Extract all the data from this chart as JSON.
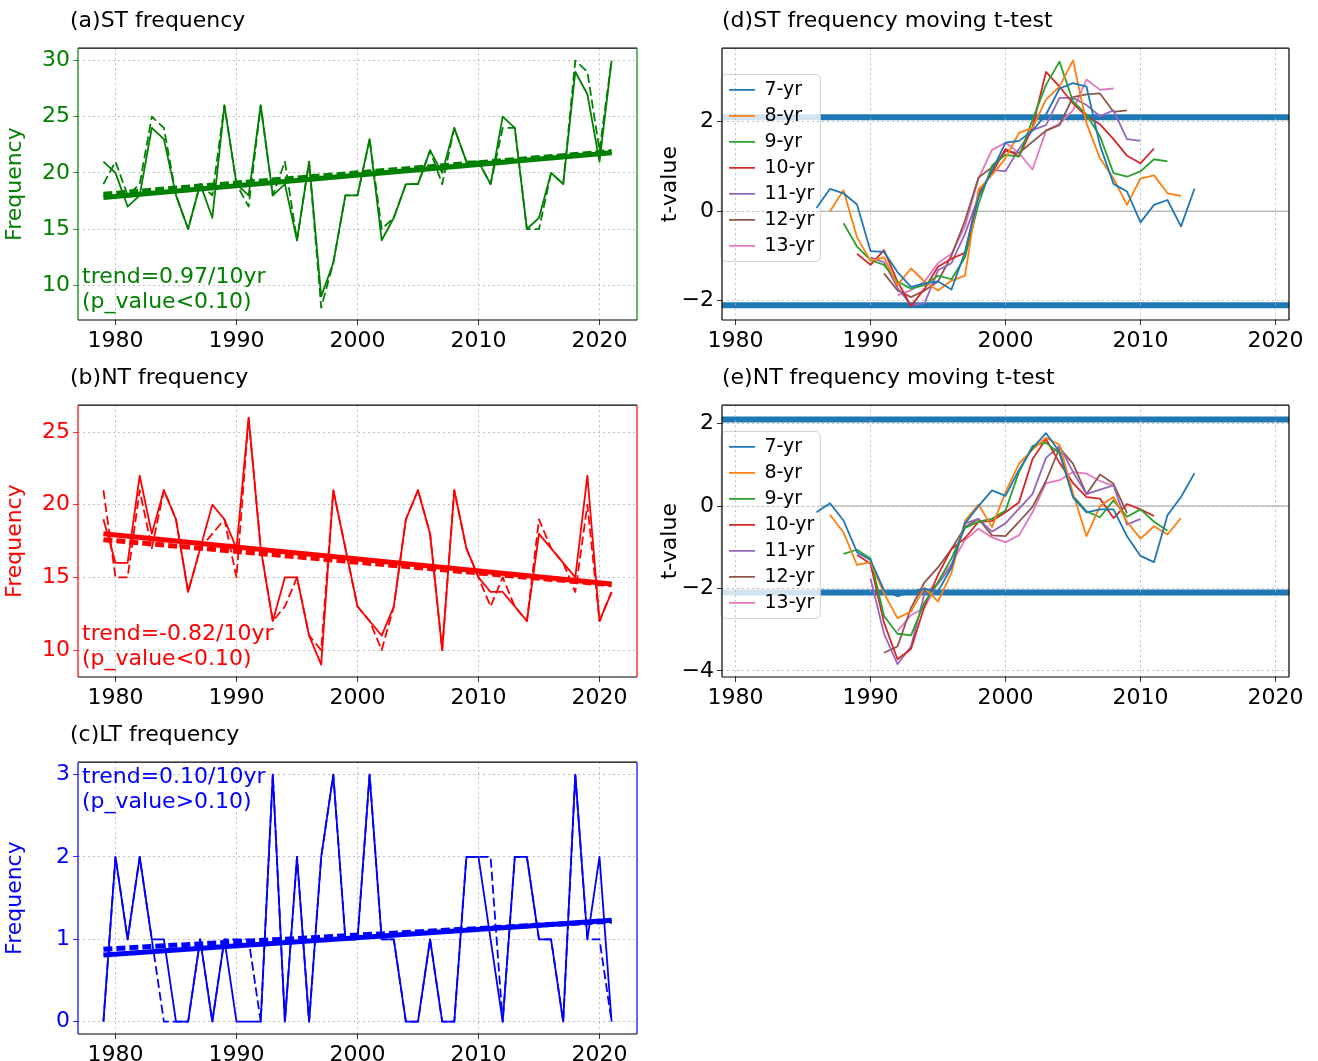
{
  "chart_data": [
    {
      "type": "line",
      "title": "(a)ST frequency",
      "ylabel": "Frequency",
      "x": [
        1979,
        1980,
        1981,
        1982,
        1983,
        1984,
        1985,
        1986,
        1987,
        1988,
        1989,
        1990,
        1991,
        1992,
        1993,
        1994,
        1995,
        1996,
        1997,
        1998,
        1999,
        2000,
        2001,
        2002,
        2003,
        2004,
        2005,
        2006,
        2007,
        2008,
        2009,
        2010,
        2011,
        2012,
        2013,
        2014,
        2015,
        2016,
        2017,
        2018,
        2019,
        2020,
        2021
      ],
      "series": [
        {
          "color": "#008000",
          "values": [
            21,
            20,
            17,
            18,
            24,
            23,
            18,
            15,
            19,
            16,
            26,
            19,
            18,
            26,
            18,
            19,
            14,
            21,
            9,
            12,
            18,
            18,
            23,
            14,
            16,
            19,
            19,
            22,
            20,
            24,
            21,
            21,
            19,
            25,
            24,
            15,
            16,
            20,
            19,
            29,
            27,
            21,
            30
          ]
        },
        {
          "color": "#008000",
          "line_style": "dashed",
          "values": [
            19,
            21,
            18,
            19,
            25,
            24,
            18,
            15,
            19,
            18,
            26,
            19,
            17,
            26,
            18,
            21,
            14,
            21,
            8,
            12,
            18,
            18,
            23,
            15,
            16,
            19,
            19,
            22,
            19,
            24,
            21,
            21,
            19,
            24,
            24,
            15,
            15,
            20,
            19,
            30,
            29,
            22,
            30
          ]
        },
        {
          "color": "#008000",
          "x": [
            1979,
            2021
          ],
          "values": [
            17.8,
            21.8
          ]
        },
        {
          "color": "#008000",
          "line_style": "dashed",
          "x": [
            1979,
            2021
          ],
          "values": [
            18.1,
            21.9
          ]
        }
      ],
      "xlim": [
        1976.9,
        2023.1
      ],
      "ylim": [
        6.9,
        31.1
      ],
      "xticks": [
        1980,
        1990,
        2000,
        2010,
        2020
      ],
      "yticks": [
        10,
        15,
        20,
        25,
        30
      ],
      "grid": true,
      "annotations": [
        "trend=0.97/10yr",
        "(p_value<0.10)"
      ]
    },
    {
      "type": "line",
      "title": "(b)NT frequency",
      "ylabel": "Frequency",
      "x": [
        1979,
        1980,
        1981,
        1982,
        1983,
        1984,
        1985,
        1986,
        1987,
        1988,
        1989,
        1990,
        1991,
        1992,
        1993,
        1994,
        1995,
        1996,
        1997,
        1998,
        1999,
        2000,
        2001,
        2002,
        2003,
        2004,
        2005,
        2006,
        2007,
        2008,
        2009,
        2010,
        2011,
        2012,
        2013,
        2014,
        2015,
        2016,
        2017,
        2018,
        2019,
        2020,
        2021
      ],
      "series": [
        {
          "color": "#ff0000",
          "values": [
            19,
            16,
            16,
            22,
            18,
            21,
            19,
            14,
            17,
            20,
            19,
            17,
            26,
            17,
            12,
            15,
            15,
            11,
            9,
            21,
            17,
            13,
            12,
            11,
            13,
            19,
            21,
            18,
            10,
            21,
            17,
            15,
            14,
            14,
            13,
            12,
            18,
            17,
            16,
            15,
            22,
            12,
            14
          ]
        },
        {
          "color": "#ff0000",
          "line_style": "dashed",
          "values": [
            21,
            15,
            15,
            21,
            17,
            21,
            19,
            14,
            17,
            18,
            19,
            15,
            26,
            17,
            12,
            13,
            15,
            11,
            10,
            21,
            17,
            13,
            12,
            10,
            13,
            19,
            21,
            18,
            10,
            21,
            17,
            15,
            13,
            15,
            13,
            12,
            19,
            17,
            16,
            14,
            20,
            12,
            14
          ]
        },
        {
          "color": "#ff0000",
          "x": [
            1979,
            2021
          ],
          "values": [
            18.0,
            14.55
          ]
        },
        {
          "color": "#ff0000",
          "line_style": "dashed",
          "x": [
            1979,
            2021
          ],
          "values": [
            17.6,
            14.5
          ]
        }
      ],
      "xlim": [
        1976.9,
        2023.1
      ],
      "ylim": [
        8.15,
        26.85
      ],
      "xticks": [
        1980,
        1990,
        2000,
        2010,
        2020
      ],
      "yticks": [
        10,
        15,
        20,
        25
      ],
      "grid": true,
      "annotations": [
        "trend=-0.82/10yr",
        "(p_value<0.10)"
      ]
    },
    {
      "type": "line",
      "title": "(c)LT frequency",
      "ylabel": "Frequency",
      "x": [
        1979,
        1980,
        1981,
        1982,
        1983,
        1984,
        1985,
        1986,
        1987,
        1988,
        1989,
        1990,
        1991,
        1992,
        1993,
        1994,
        1995,
        1996,
        1997,
        1998,
        1999,
        2000,
        2001,
        2002,
        2003,
        2004,
        2005,
        2006,
        2007,
        2008,
        2009,
        2010,
        2011,
        2012,
        2013,
        2014,
        2015,
        2016,
        2017,
        2018,
        2019,
        2020,
        2021
      ],
      "series": [
        {
          "color": "#0000ff",
          "values": [
            0,
            2,
            1,
            2,
            1,
            1,
            0,
            0,
            1,
            0,
            1,
            0,
            0,
            0,
            3,
            0,
            2,
            0,
            2,
            3,
            1,
            1,
            3,
            1,
            1,
            0,
            0,
            1,
            0,
            0,
            2,
            2,
            1,
            0,
            2,
            2,
            1,
            1,
            0,
            3,
            1,
            2,
            0
          ]
        },
        {
          "color": "#0000ff",
          "line_style": "dashed",
          "values": [
            0,
            2,
            1,
            2,
            1,
            0,
            0,
            0,
            1,
            0,
            1,
            1,
            1,
            0,
            3,
            0,
            2,
            0,
            2,
            3,
            1,
            1,
            3,
            1,
            1,
            0,
            0,
            1,
            0,
            0,
            2,
            2,
            2,
            0,
            2,
            2,
            1,
            1,
            0,
            3,
            1,
            1,
            0
          ]
        },
        {
          "color": "#0000ff",
          "x": [
            1979,
            2021
          ],
          "values": [
            0.81,
            1.23
          ]
        },
        {
          "color": "#0000ff",
          "line_style": "dashed",
          "x": [
            1979,
            2021
          ],
          "values": [
            0.88,
            1.22
          ]
        }
      ],
      "xlim": [
        1976.9,
        2023.1
      ],
      "ylim": [
        -0.15,
        3.15
      ],
      "xticks": [
        1980,
        1990,
        2000,
        2010,
        2020
      ],
      "yticks": [
        0,
        1,
        2,
        3
      ],
      "grid": true,
      "annotations": [
        "trend=0.10/10yr",
        "(p_value>0.10)"
      ]
    },
    {
      "type": "line",
      "title": "(d)ST frequency moving t-test",
      "ylabel": "t-value",
      "series": [
        {
          "name": "7-yr",
          "color": "#1f77b4",
          "x": [
            1986,
            1987,
            1988,
            1989,
            1990,
            1991,
            1992,
            1993,
            1994,
            1995,
            1996,
            1997,
            1998,
            1999,
            2000,
            2001,
            2002,
            2003,
            2004,
            2005,
            2006,
            2007,
            2008,
            2009,
            2010,
            2011,
            2012,
            2013,
            2014
          ],
          "values": [
            0.07,
            0.5,
            0.4,
            0.15,
            -0.89,
            -0.91,
            -1.36,
            -1.69,
            -1.61,
            -1.57,
            -1.75,
            -0.91,
            0.32,
            0.9,
            1.53,
            1.57,
            1.8,
            2.16,
            2.74,
            2.86,
            2.78,
            1.47,
            0.61,
            0.44,
            -0.25,
            0.14,
            0.25,
            -0.34,
            0.5
          ]
        },
        {
          "name": "8-yr",
          "color": "#ff7f0e",
          "x": [
            1987,
            1988,
            1989,
            1990,
            1991,
            1992,
            1993,
            1994,
            1995,
            1996,
            1997,
            1998,
            1999,
            2000,
            2001,
            2002,
            2003,
            2004,
            2005,
            2006,
            2007,
            2008,
            2009,
            2010,
            2011,
            2012,
            2013
          ],
          "values": [
            0,
            0.47,
            -0.58,
            -1.11,
            -1.03,
            -1.65,
            -1.28,
            -1.57,
            -1.77,
            -1.55,
            -1.44,
            0.48,
            0.81,
            1.18,
            1.75,
            1.86,
            2.49,
            2.78,
            3.37,
            1.96,
            1.18,
            0.73,
            0.14,
            0.73,
            0.8,
            0.4,
            0.34
          ]
        },
        {
          "name": "9-yr",
          "color": "#2ca02c",
          "x": [
            1988,
            1989,
            1990,
            1991,
            1992,
            1993,
            1994,
            1995,
            1996,
            1997,
            1998,
            1999,
            2000,
            2001,
            2002,
            2003,
            2004,
            2005,
            2006,
            2007,
            2008,
            2009,
            2010,
            2011,
            2012
          ],
          "values": [
            -0.27,
            -0.79,
            -1.09,
            -1.2,
            -1.57,
            -1.73,
            -1.65,
            -1.44,
            -1.52,
            -1.03,
            0.16,
            1.02,
            1.26,
            1.22,
            2.04,
            2.82,
            3.34,
            2.45,
            2.16,
            1.67,
            0.85,
            0.77,
            0.89,
            1.16,
            1.11
          ]
        },
        {
          "name": "10-yr",
          "color": "#d62728",
          "x": [
            1989,
            1990,
            1991,
            1992,
            1993,
            1994,
            1995,
            1996,
            1997,
            1998,
            1999,
            2000,
            2001,
            2002,
            2003,
            2004,
            2005,
            2006,
            2007,
            2008,
            2009,
            2010,
            2011
          ],
          "values": [
            -0.95,
            -1.2,
            -0.87,
            -1.57,
            -2.12,
            -1.73,
            -1.24,
            -1.06,
            -0.93,
            0.4,
            0.85,
            1.39,
            1.22,
            1.88,
            3.11,
            2.78,
            2.41,
            2.12,
            1.94,
            1.61,
            1.24,
            1.07,
            1.4
          ]
        },
        {
          "name": "11-yr",
          "color": "#9467bd",
          "x": [
            1990,
            1991,
            1992,
            1993,
            1994,
            1995,
            1996,
            1997,
            1998,
            1999,
            2000,
            2001,
            2002,
            2003,
            2004,
            2005,
            2006,
            2007,
            2008,
            2009,
            2010
          ],
          "values": [
            -1.03,
            -1.14,
            -1.71,
            -2.1,
            -2.06,
            -1.32,
            -1.16,
            -0.5,
            0.32,
            0.93,
            0.89,
            1.39,
            1.81,
            1.92,
            2.53,
            2.53,
            2.37,
            2.12,
            2.25,
            1.61,
            1.57
          ]
        },
        {
          "name": "12-yr",
          "color": "#8c564b",
          "x": [
            1991,
            1992,
            1993,
            1994,
            1995,
            1996,
            1997,
            1998,
            1999,
            2000,
            2001,
            2002,
            2003,
            2004,
            2005,
            2006,
            2007,
            2008,
            2009
          ],
          "values": [
            -1.39,
            -1.77,
            -1.92,
            -1.77,
            -1.57,
            -0.99,
            -0.21,
            0.75,
            0.98,
            1.34,
            1.3,
            1.55,
            1.8,
            1.92,
            2.55,
            2.61,
            2.63,
            2.22,
            2.25
          ]
        },
        {
          "name": "13-yr",
          "color": "#e377c2",
          "x": [
            1992,
            1993,
            1994,
            1995,
            1996,
            1997,
            1998,
            1999,
            2000,
            2001,
            2002,
            2003,
            2004,
            2005,
            2006,
            2007,
            2008
          ],
          "values": [
            -1.88,
            -1.77,
            -1.57,
            -1.16,
            -0.95,
            -0.34,
            0.73,
            1.37,
            1.53,
            1.3,
            0.93,
            1.8,
            1.96,
            2.25,
            2.94,
            2.71,
            2.74
          ]
        }
      ],
      "xlim": [
        1979,
        2021
      ],
      "ylim": [
        -2.43,
        3.64
      ],
      "xticks": [
        1980,
        1990,
        2000,
        2010,
        2020
      ],
      "yticks": [
        -2,
        0,
        2
      ],
      "grid": true,
      "legend": "left",
      "ref_lines": [
        {
          "axis": "y",
          "value": 0,
          "color": "#bfbfbf"
        },
        {
          "axis": "y",
          "value": 2.1,
          "color": "#1f77b4"
        },
        {
          "axis": "y",
          "value": -2.1,
          "color": "#1f77b4"
        }
      ]
    },
    {
      "type": "line",
      "title": "(e)NT frequency moving t-test",
      "ylabel": "t-value",
      "series": [
        {
          "name": "7-yr",
          "color": "#1f77b4",
          "x": [
            1986,
            1987,
            1988,
            1989,
            1990,
            1991,
            1992,
            1993,
            1994,
            1995,
            1996,
            1997,
            1998,
            1999,
            2000,
            2001,
            2002,
            2003,
            2004,
            2005,
            2006,
            2007,
            2008,
            2009,
            2010,
            2011,
            2012,
            2013,
            2014
          ],
          "values": [
            -0.15,
            0.07,
            -0.35,
            -1.12,
            -1.31,
            -2.04,
            -2.19,
            -2.07,
            -2.01,
            -2.07,
            -1.49,
            -0.42,
            0,
            0.38,
            0.25,
            0.88,
            1.41,
            1.77,
            1.32,
            0.21,
            -0.15,
            -0.08,
            -0.08,
            -0.73,
            -1.21,
            -1.36,
            -0.22,
            0.22,
            0.8
          ]
        },
        {
          "name": "8-yr",
          "color": "#ff7f0e",
          "x": [
            1987,
            1988,
            1989,
            1990,
            1991,
            1992,
            1993,
            1994,
            1995,
            1996,
            1997,
            1998,
            1999,
            2000,
            2001,
            2002,
            2003,
            2004,
            2005,
            2006,
            2007,
            2008,
            2009,
            2010,
            2011,
            2012,
            2013
          ],
          "values": [
            -0.21,
            -0.64,
            -1.43,
            -1.36,
            -2.12,
            -2.72,
            -2.56,
            -1.98,
            -2.32,
            -1.62,
            -0.36,
            0.04,
            -0.51,
            0.34,
            1.03,
            1.37,
            1.66,
            1.49,
            0.31,
            -0.73,
            0,
            0.22,
            -0.38,
            -0.79,
            -0.49,
            -0.69,
            -0.29
          ]
        },
        {
          "name": "9-yr",
          "color": "#2ca02c",
          "x": [
            1988,
            1989,
            1990,
            1991,
            1992,
            1993,
            1994,
            1995,
            1996,
            1997,
            1998,
            1999,
            2000,
            2001,
            2002,
            2003,
            2004,
            2005,
            2006,
            2007,
            2008,
            2009,
            2010,
            2011,
            2012
          ],
          "values": [
            -1.16,
            -1.06,
            -1.27,
            -2.67,
            -3.1,
            -3.14,
            -2.34,
            -1.85,
            -1.27,
            -0.53,
            -0.38,
            -0.31,
            -0.11,
            0.83,
            1.46,
            1.54,
            1.28,
            0.25,
            -0.13,
            -0.27,
            0.14,
            -0.26,
            -0.08,
            -0.38,
            -0.6
          ]
        },
        {
          "name": "10-yr",
          "color": "#d62728",
          "x": [
            1989,
            1990,
            1991,
            1992,
            1993,
            1994,
            1995,
            1996,
            1997,
            1998,
            1999,
            2000,
            2001,
            2002,
            2003,
            2004,
            2005,
            2006,
            2007,
            2008,
            2009,
            2010,
            2011
          ],
          "values": [
            -1.18,
            -1.4,
            -2.83,
            -3.72,
            -3.47,
            -2.43,
            -1.67,
            -1.04,
            -0.78,
            -0.38,
            -0.36,
            -0.15,
            0.09,
            1.14,
            1.63,
            1.05,
            0.56,
            0.22,
            0.18,
            -0.29,
            0.05,
            -0.08,
            -0.24
          ]
        },
        {
          "name": "11-yr",
          "color": "#9467bd",
          "x": [
            1990,
            1991,
            1992,
            1993,
            1994,
            1995,
            1996,
            1997,
            1998,
            1999,
            2000,
            2001,
            2002,
            2003,
            2004,
            2005,
            2006,
            2007,
            2008,
            2009,
            2010
          ],
          "values": [
            -1.76,
            -3.1,
            -3.84,
            -3.41,
            -2.12,
            -1.89,
            -1.45,
            -0.42,
            -0.31,
            -0.62,
            -0.42,
            -0.06,
            0.29,
            1.17,
            1.46,
            0.83,
            0.29,
            0.4,
            0.5,
            -0.45,
            -0.31
          ]
        },
        {
          "name": "12-yr",
          "color": "#8c564b",
          "x": [
            1991,
            1992,
            1993,
            1994,
            1995,
            1996,
            1997,
            1998,
            1999,
            2000,
            2001,
            2002,
            2003,
            2004,
            2005,
            2006,
            2007,
            2008,
            2009
          ],
          "values": [
            -3.56,
            -3.41,
            -2.47,
            -1.85,
            -1.49,
            -1.04,
            -0.51,
            -0.31,
            -0.71,
            -0.73,
            -0.38,
            -0.02,
            0.61,
            1.41,
            1.03,
            0.29,
            0.77,
            0.54,
            -0.17
          ]
        },
        {
          "name": "13-yr",
          "color": "#e377c2",
          "x": [
            1992,
            1993,
            1994,
            1995,
            1996,
            1997,
            1998,
            1999,
            2000,
            2001,
            2002,
            2003,
            2004,
            2005,
            2006,
            2007,
            2008
          ],
          "values": [
            -3.03,
            -2.65,
            -2.47,
            -1.85,
            -1.4,
            -0.82,
            -0.55,
            -0.76,
            -0.88,
            -0.71,
            -0.15,
            0.56,
            0.63,
            0.83,
            0.79,
            0.61,
            0.49
          ]
        }
      ],
      "xlim": [
        1979,
        2021
      ],
      "ylim": [
        -4.15,
        2.45
      ],
      "xticks": [
        1980,
        1990,
        2000,
        2010,
        2020
      ],
      "yticks": [
        -4,
        -2,
        0,
        2
      ],
      "grid": true,
      "legend": "left",
      "ref_lines": [
        {
          "axis": "y",
          "value": 0,
          "color": "#bfbfbf"
        },
        {
          "axis": "y",
          "value": 2.1,
          "color": "#1f77b4"
        },
        {
          "axis": "y",
          "value": -2.1,
          "color": "#1f77b4"
        }
      ]
    }
  ]
}
